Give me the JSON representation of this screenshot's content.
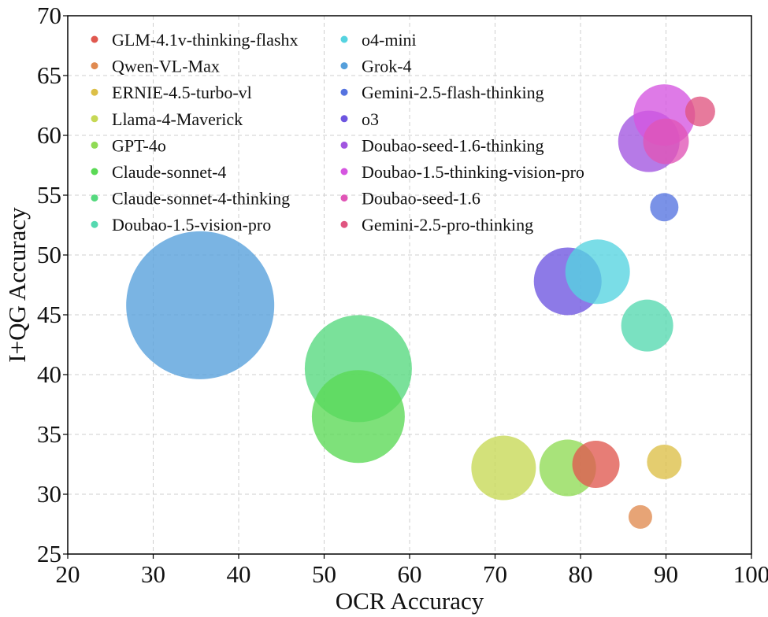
{
  "chart_data": {
    "type": "scatter",
    "title": "",
    "xlabel": "OCR Accuracy",
    "ylabel": "I+QG Accuracy",
    "xlim": [
      20,
      100
    ],
    "ylim": [
      25,
      70
    ],
    "xticks": [
      20,
      30,
      40,
      50,
      60,
      70,
      80,
      90,
      100
    ],
    "yticks": [
      25,
      30,
      35,
      40,
      45,
      50,
      55,
      60,
      65,
      70
    ],
    "grid": true,
    "legend_position": "top-left, two columns",
    "bubble_size_encoded": true,
    "series": [
      {
        "name": "GLM-4.1v-thinking-flashx",
        "color": "#e0584f",
        "x": 81.8,
        "y": 32.5,
        "size": 30
      },
      {
        "name": "Qwen-VL-Max",
        "color": "#e08a50",
        "x": 87.0,
        "y": 28.1,
        "size": 15
      },
      {
        "name": "ERNIE-4.5-turbo-vl",
        "color": "#dcbf47",
        "x": 89.8,
        "y": 32.7,
        "size": 22
      },
      {
        "name": "Llama-4-Maverick",
        "color": "#c6d855",
        "x": 71.0,
        "y": 32.2,
        "size": 41
      },
      {
        "name": "GPT-4o",
        "color": "#90db55",
        "x": 78.5,
        "y": 32.2,
        "size": 36
      },
      {
        "name": "Claude-sonnet-4",
        "color": "#5ad955",
        "x": 54.0,
        "y": 36.5,
        "size": 59
      },
      {
        "name": "Claude-sonnet-4-thinking",
        "color": "#55d97e",
        "x": 54.0,
        "y": 40.5,
        "size": 68
      },
      {
        "name": "Doubao-1.5-vision-pro",
        "color": "#55d9b0",
        "x": 87.8,
        "y": 44.1,
        "size": 33
      },
      {
        "name": "o4-mini",
        "color": "#55d3e0",
        "x": 82.0,
        "y": 48.6,
        "size": 41
      },
      {
        "name": "Grok-4",
        "color": "#559fdb",
        "x": 35.5,
        "y": 45.8,
        "size": 94
      },
      {
        "name": "Gemini-2.5-flash-thinking",
        "color": "#5573e0",
        "x": 89.8,
        "y": 54.0,
        "size": 18
      },
      {
        "name": "o3",
        "color": "#6d55e0",
        "x": 78.5,
        "y": 47.8,
        "size": 43
      },
      {
        "name": "Doubao-seed-1.6-thinking",
        "color": "#a155e0",
        "x": 88.0,
        "y": 59.5,
        "size": 39
      },
      {
        "name": "Doubao-1.5-thinking-vision-pro",
        "color": "#d555e0",
        "x": 89.8,
        "y": 61.7,
        "size": 39
      },
      {
        "name": "Doubao-seed-1.6",
        "color": "#e055b6",
        "x": 90.0,
        "y": 59.5,
        "size": 29
      },
      {
        "name": "Gemini-2.5-pro-thinking",
        "color": "#e05580",
        "x": 94.0,
        "y": 62.0,
        "size": 19
      }
    ]
  }
}
